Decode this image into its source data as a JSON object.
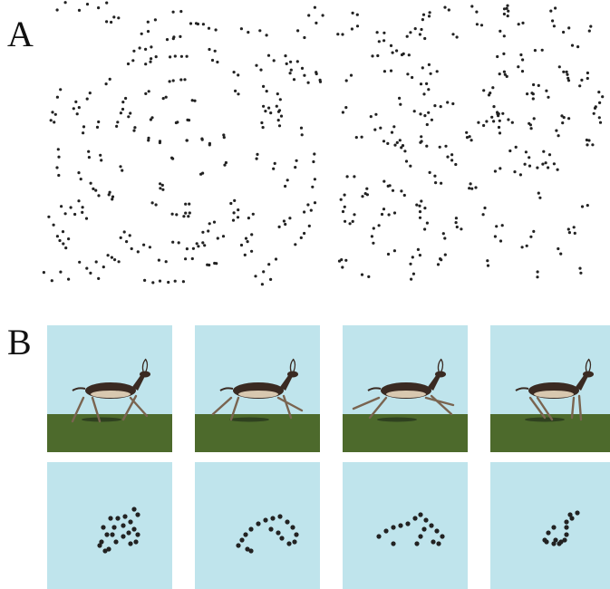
{
  "panel_a": {
    "label": "A",
    "left_field_description_icon": "dot-pattern-concentric-icon",
    "right_field_description_icon": "dot-pattern-random-icon"
  },
  "panel_b": {
    "label": "B",
    "frames": [
      {
        "photo_icon": "running-antelope-frame-1-icon",
        "dots_icon": "point-light-antelope-frame-1-icon"
      },
      {
        "photo_icon": "running-antelope-frame-2-icon",
        "dots_icon": "point-light-antelope-frame-2-icon"
      },
      {
        "photo_icon": "running-antelope-frame-3-icon",
        "dots_icon": "point-light-antelope-frame-3-icon"
      },
      {
        "photo_icon": "running-antelope-frame-4-icon",
        "dots_icon": "point-light-antelope-frame-4-icon"
      }
    ]
  },
  "colors": {
    "sky": "#bfe4ec",
    "grass": "#4d6a2c",
    "dot": "#222222",
    "animal": "#3a2a22"
  }
}
